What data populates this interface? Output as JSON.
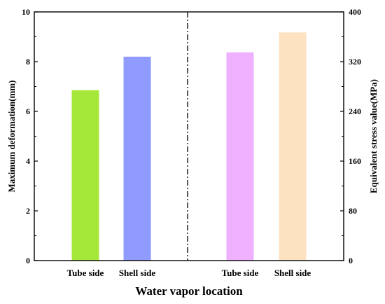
{
  "chart_data": {
    "type": "bar",
    "xlabel": "Water vapor location",
    "left_axis": {
      "label": "Maximum deformation(mm)",
      "ylim": [
        0,
        10
      ],
      "ticks": [
        "0",
        "2",
        "4",
        "6",
        "8",
        "10"
      ]
    },
    "right_axis": {
      "label": "Equivalent stress value(MPa)",
      "ylim": [
        0,
        400
      ],
      "ticks": [
        "0",
        "80",
        "160",
        "240",
        "320",
        "400"
      ]
    },
    "groups": [
      {
        "axis": "left",
        "categories": [
          "Tube side",
          "Shell side"
        ],
        "values": [
          6.85,
          8.2
        ],
        "colors": [
          "#a6e83a",
          "#8f9bff"
        ]
      },
      {
        "axis": "right",
        "categories": [
          "Tube side",
          "Shell side"
        ],
        "values": [
          335,
          367
        ],
        "colors": [
          "#eeb0ff",
          "#fde2c2"
        ]
      }
    ],
    "grid": false,
    "divider": "dash-dot vertical line at center"
  }
}
